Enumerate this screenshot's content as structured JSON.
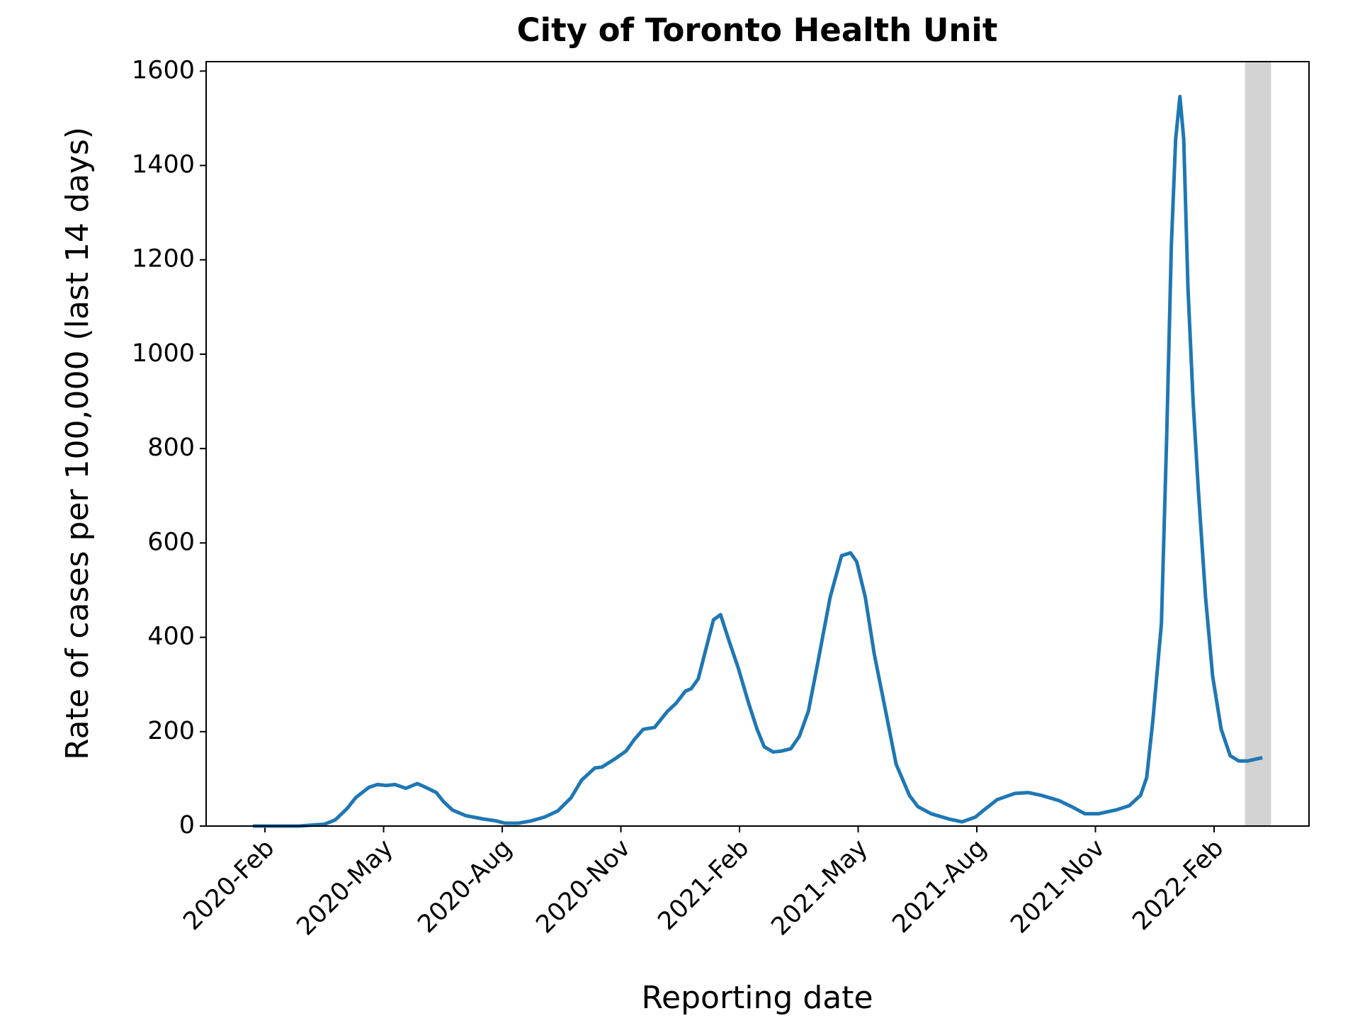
{
  "chart_data": {
    "type": "line",
    "title": "City of Toronto Health Unit",
    "x_label": "Reporting date",
    "y_label": "Rate of cases per 100,000 (last 14 days)",
    "xlim": [
      2019.959,
      2022.283
    ],
    "ylim": [
      0,
      1620
    ],
    "xticks": [
      {
        "value": 2020.083,
        "label": "2020-Feb"
      },
      {
        "value": 2020.333,
        "label": "2020-May"
      },
      {
        "value": 2020.583,
        "label": "2020-Aug"
      },
      {
        "value": 2020.833,
        "label": "2020-Nov"
      },
      {
        "value": 2021.083,
        "label": "2021-Feb"
      },
      {
        "value": 2021.333,
        "label": "2021-May"
      },
      {
        "value": 2021.583,
        "label": "2021-Aug"
      },
      {
        "value": 2021.833,
        "label": "2021-Nov"
      },
      {
        "value": 2022.083,
        "label": "2022-Feb"
      }
    ],
    "yticks": [
      0,
      200,
      400,
      600,
      800,
      1000,
      1200,
      1400,
      1600
    ],
    "shaded_span": [
      2022.148,
      2022.203
    ],
    "shaded_color": "#d3d3d3",
    "grid": false,
    "x": [
      2020.061,
      2020.154,
      2020.209,
      2020.231,
      2020.256,
      2020.274,
      2020.302,
      2020.32,
      2020.339,
      2020.357,
      2020.38,
      2020.404,
      2020.422,
      2020.444,
      2020.459,
      2020.478,
      2020.506,
      2020.543,
      2020.57,
      2020.589,
      2020.617,
      2020.644,
      2020.672,
      2020.7,
      2020.728,
      2020.75,
      2020.778,
      2020.793,
      2020.82,
      2020.844,
      2020.861,
      2020.88,
      2020.904,
      2020.931,
      2020.95,
      2020.969,
      2020.981,
      2020.996,
      2021.006,
      2021.028,
      2021.043,
      2021.061,
      2021.08,
      2021.102,
      2021.12,
      2021.135,
      2021.154,
      2021.172,
      2021.191,
      2021.209,
      2021.228,
      2021.246,
      2021.274,
      2021.298,
      2021.317,
      2021.33,
      2021.348,
      2021.367,
      2021.391,
      2021.413,
      2021.441,
      2021.459,
      2021.487,
      2021.524,
      2021.552,
      2021.58,
      2021.598,
      2021.626,
      2021.663,
      2021.691,
      2021.719,
      2021.756,
      2021.783,
      2021.811,
      2021.839,
      2021.876,
      2021.904,
      2021.928,
      2021.941,
      2021.954,
      2021.972,
      2021.983,
      2021.993,
      2022.002,
      2022.011,
      2022.019,
      2022.028,
      2022.039,
      2022.05,
      2022.065,
      2022.08,
      2022.098,
      2022.117,
      2022.135,
      2022.154,
      2022.181
    ],
    "series": [
      {
        "name": "Rate",
        "color": "#1f77b4",
        "values": [
          0,
          0,
          4,
          13,
          37,
          60,
          82,
          88,
          86,
          88,
          80,
          90,
          82,
          71,
          52,
          34,
          22,
          15,
          11,
          6,
          6,
          11,
          19,
          32,
          60,
          97,
          123,
          125,
          142,
          159,
          183,
          205,
          209,
          243,
          261,
          286,
          291,
          312,
          351,
          437,
          448,
          392,
          336,
          261,
          205,
          168,
          157,
          159,
          164,
          190,
          243,
          336,
          485,
          573,
          579,
          560,
          485,
          364,
          243,
          131,
          65,
          41,
          26,
          15,
          9,
          19,
          34,
          56,
          69,
          71,
          65,
          54,
          41,
          26,
          26,
          34,
          43,
          65,
          103,
          224,
          429,
          821,
          1232,
          1456,
          1546,
          1456,
          1139,
          896,
          709,
          485,
          317,
          205,
          149,
          138,
          138,
          144
        ]
      }
    ]
  }
}
